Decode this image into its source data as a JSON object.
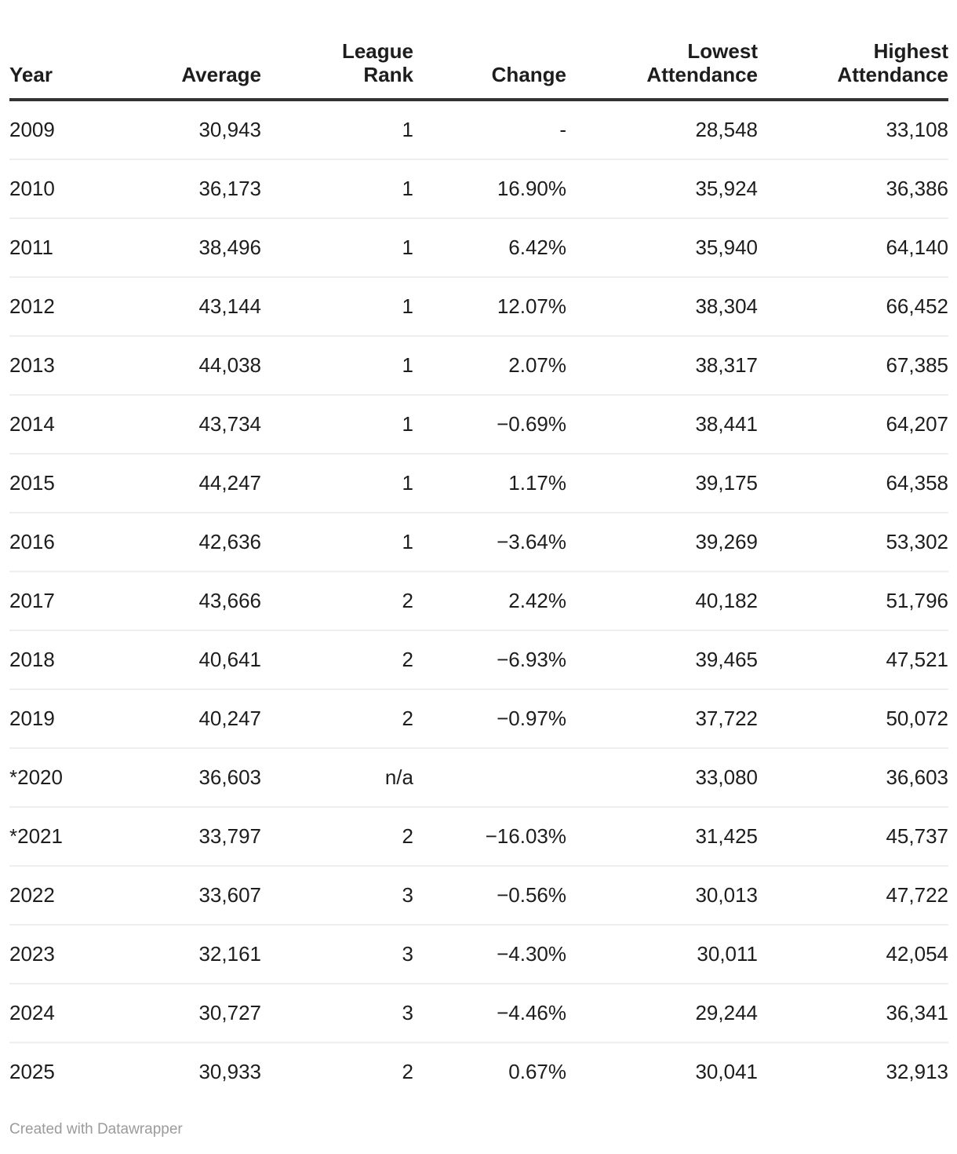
{
  "chart_data": {
    "type": "table",
    "columns": [
      {
        "label": "Year",
        "align": "left"
      },
      {
        "label": "Average",
        "align": "right"
      },
      {
        "label": "League\nRank",
        "align": "right"
      },
      {
        "label": "Change",
        "align": "right"
      },
      {
        "label": "Lowest\nAttendance",
        "align": "right"
      },
      {
        "label": "Highest\nAttendance",
        "align": "right"
      }
    ],
    "rows": [
      [
        "2009",
        "30,943",
        "1",
        "-",
        "28,548",
        "33,108"
      ],
      [
        "2010",
        "36,173",
        "1",
        "16.90%",
        "35,924",
        "36,386"
      ],
      [
        "2011",
        "38,496",
        "1",
        "6.42%",
        "35,940",
        "64,140"
      ],
      [
        "2012",
        "43,144",
        "1",
        "12.07%",
        "38,304",
        "66,452"
      ],
      [
        "2013",
        "44,038",
        "1",
        "2.07%",
        "38,317",
        "67,385"
      ],
      [
        "2014",
        "43,734",
        "1",
        "−0.69%",
        "38,441",
        "64,207"
      ],
      [
        "2015",
        "44,247",
        "1",
        "1.17%",
        "39,175",
        "64,358"
      ],
      [
        "2016",
        "42,636",
        "1",
        "−3.64%",
        "39,269",
        "53,302"
      ],
      [
        "2017",
        "43,666",
        "2",
        "2.42%",
        "40,182",
        "51,796"
      ],
      [
        "2018",
        "40,641",
        "2",
        "−6.93%",
        "39,465",
        "47,521"
      ],
      [
        "2019",
        "40,247",
        "2",
        "−0.97%",
        "37,722",
        "50,072"
      ],
      [
        "*2020",
        "36,603",
        "n/a",
        "",
        "33,080",
        "36,603"
      ],
      [
        "*2021",
        "33,797",
        "2",
        "−16.03%",
        "31,425",
        "45,737"
      ],
      [
        "2022",
        "33,607",
        "3",
        "−0.56%",
        "30,013",
        "47,722"
      ],
      [
        "2023",
        "32,161",
        "3",
        "−4.30%",
        "30,011",
        "42,054"
      ],
      [
        "2024",
        "30,727",
        "3",
        "−4.46%",
        "29,244",
        "36,341"
      ],
      [
        "2025",
        "30,933",
        "2",
        "0.67%",
        "30,041",
        "32,913"
      ]
    ]
  },
  "footer": {
    "credit": "Created with Datawrapper"
  },
  "colors": {
    "background": "#ffffff",
    "text": "#1d1d1d",
    "header_rule": "#333333",
    "row_divider": "#eeeeee",
    "credit_text": "#9b9b9b"
  }
}
